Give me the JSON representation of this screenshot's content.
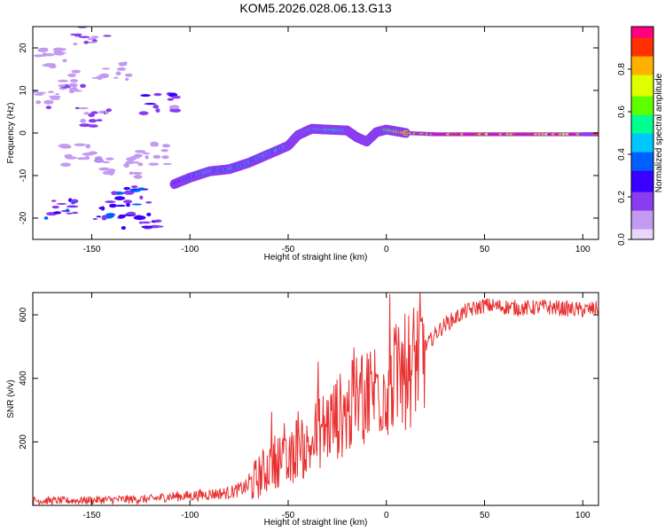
{
  "title": "KOM5.2026.028.06.13.G13",
  "chart_data": [
    {
      "type": "heatmap",
      "xlabel": "Height of straight line (km)",
      "ylabel": "Frequency (Hz)",
      "xlim": [
        -180,
        108
      ],
      "ylim": [
        -25,
        25
      ],
      "xticks": [
        -150,
        -100,
        -50,
        0,
        50,
        100
      ],
      "yticks": [
        -20,
        -10,
        0,
        10,
        20
      ],
      "colorbar": {
        "label": "Normalized spectral amplitude",
        "range": [
          0,
          1
        ],
        "ticks": [
          "0.0",
          "0.2",
          "0.4",
          "0.6",
          "0.8"
        ],
        "colors": [
          "#e8d6fb",
          "#c39af2",
          "#8a3cf0",
          "#3a00ff",
          "#0060ff",
          "#00c8ff",
          "#00ff90",
          "#60ff00",
          "#e0ff00",
          "#ffb000",
          "#ff3000",
          "#ff0080"
        ]
      },
      "ridge": [
        {
          "height": -108,
          "freq": -12,
          "amp": 0.25
        },
        {
          "height": -100,
          "freq": -10.5,
          "amp": 0.35
        },
        {
          "height": -90,
          "freq": -9,
          "amp": 0.45
        },
        {
          "height": -80,
          "freq": -8.5,
          "amp": 0.4
        },
        {
          "height": -70,
          "freq": -7,
          "amp": 0.4
        },
        {
          "height": -60,
          "freq": -5,
          "amp": 0.45
        },
        {
          "height": -50,
          "freq": -3,
          "amp": 0.45
        },
        {
          "height": -45,
          "freq": -0.5,
          "amp": 0.45
        },
        {
          "height": -38,
          "freq": 1,
          "amp": 0.5
        },
        {
          "height": -30,
          "freq": 0.8,
          "amp": 0.5
        },
        {
          "height": -20,
          "freq": 0.6,
          "amp": 0.5
        },
        {
          "height": -15,
          "freq": -1,
          "amp": 0.4
        },
        {
          "height": -10,
          "freq": -2,
          "amp": 0.5
        },
        {
          "height": -5,
          "freq": 0.2,
          "amp": 0.5
        },
        {
          "height": 0,
          "freq": 0.8,
          "amp": 0.6
        },
        {
          "height": 10,
          "freq": 0,
          "amp": 0.8
        },
        {
          "height": 25,
          "freq": -0.3,
          "amp": 0.95
        },
        {
          "height": 50,
          "freq": -0.3,
          "amp": 0.95
        },
        {
          "height": 75,
          "freq": -0.3,
          "amp": 0.95
        },
        {
          "height": 100,
          "freq": -0.3,
          "amp": 0.95
        },
        {
          "height": 108,
          "freq": -0.3,
          "amp": 0.95
        }
      ],
      "noise_blobs": [
        {
          "height": -170,
          "freq": 18,
          "amp": 0.1
        },
        {
          "height": -160,
          "freq": 12,
          "amp": 0.1
        },
        {
          "height": -150,
          "freq": 4,
          "amp": 0.15
        },
        {
          "height": -140,
          "freq": 15,
          "amp": 0.1
        },
        {
          "height": -155,
          "freq": -5,
          "amp": 0.1
        },
        {
          "height": -165,
          "freq": -18,
          "amp": 0.25
        },
        {
          "height": -140,
          "freq": -18,
          "amp": 0.25
        },
        {
          "height": -130,
          "freq": -15,
          "amp": 0.25
        },
        {
          "height": -125,
          "freq": -20,
          "amp": 0.2
        },
        {
          "height": -115,
          "freq": 7,
          "amp": 0.2
        },
        {
          "height": -150,
          "freq": 23,
          "amp": 0.15
        },
        {
          "height": -175,
          "freq": 8,
          "amp": 0.1
        },
        {
          "height": -135,
          "freq": -8,
          "amp": 0.1
        },
        {
          "height": -120,
          "freq": -5,
          "amp": 0.1
        }
      ]
    },
    {
      "type": "line",
      "xlabel": "Height of straight line (km)",
      "ylabel": "SNR (v/v)",
      "xlim": [
        -180,
        108
      ],
      "ylim": [
        0,
        670
      ],
      "xticks": [
        -150,
        -100,
        -50,
        0,
        50,
        100
      ],
      "yticks": [
        200,
        400,
        600
      ],
      "color": "#e83030",
      "series": [
        {
          "name": "SNR",
          "x": [
            -180,
            -160,
            -140,
            -120,
            -110,
            -100,
            -90,
            -80,
            -70,
            -65,
            -60,
            -55,
            -50,
            -45,
            -40,
            -35,
            -30,
            -25,
            -20,
            -15,
            -10,
            -5,
            0,
            5,
            10,
            15,
            20,
            25,
            30,
            35,
            40,
            50,
            60,
            70,
            80,
            90,
            100,
            108
          ],
          "y": [
            15,
            15,
            18,
            20,
            28,
            30,
            35,
            40,
            60,
            90,
            120,
            150,
            120,
            200,
            170,
            230,
            250,
            280,
            290,
            330,
            350,
            370,
            380,
            400,
            420,
            460,
            500,
            540,
            570,
            590,
            610,
            630,
            625,
            620,
            625,
            620,
            615,
            620
          ]
        }
      ]
    }
  ]
}
